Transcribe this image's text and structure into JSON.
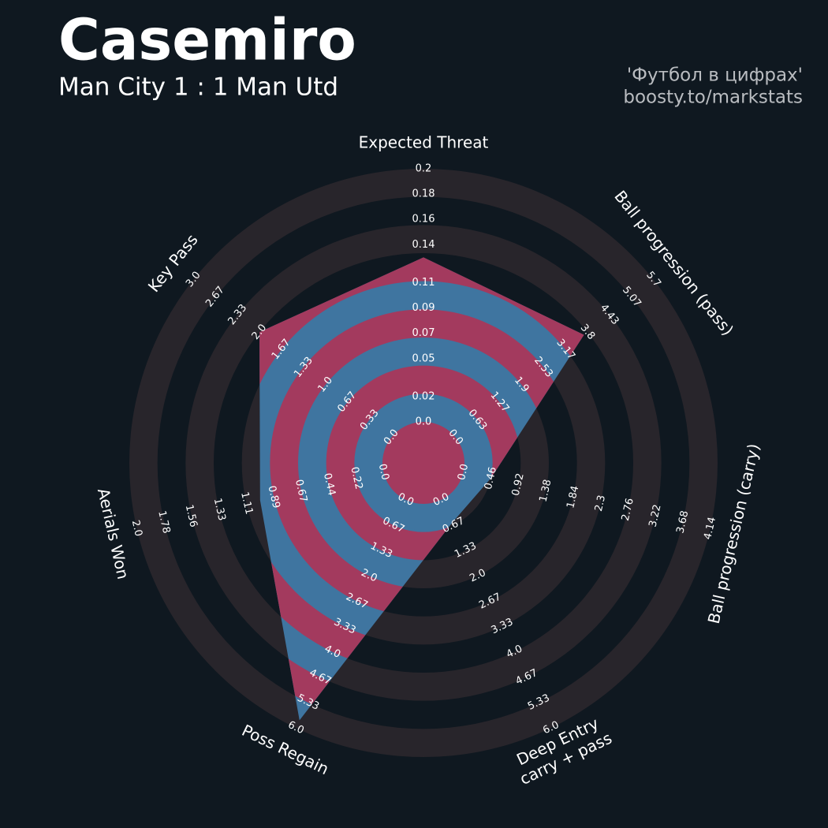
{
  "chart_data": {
    "type": "radar",
    "title": "Casemiro",
    "subtitle": "Man City 1 : 1 Man Utd",
    "credits": [
      "'Футбол в цифрах'",
      "boosty.to/markstats"
    ],
    "categories": [
      "Expected Threat",
      "Ball progression (pass)",
      "Ball progression (carry)",
      "Deep Entry\ncarry + pass",
      "Poss Regain",
      "Aerials Won",
      "Key Pass"
    ],
    "values": [
      0.13,
      3.7,
      0.46,
      0.6,
      5.8,
      1.0,
      2.0
    ],
    "axes": [
      {
        "lim": [
          0,
          0.2
        ],
        "ticks": [
          {
            "value": 0,
            "label": "0.0"
          },
          0.02,
          0.05,
          0.07,
          0.09,
          0.11,
          0.14,
          0.16,
          0.18,
          0.2
        ]
      },
      {
        "lim": [
          0,
          5.7
        ],
        "ticks": [
          {
            "value": 0,
            "label": "0.0"
          },
          0.63,
          1.27,
          1.9,
          2.53,
          3.17,
          3.8,
          4.43,
          5.07,
          5.7
        ]
      },
      {
        "lim": [
          0,
          4.14
        ],
        "ticks": [
          {
            "value": 0,
            "label": "0.0"
          },
          0.46,
          0.92,
          1.38,
          1.84,
          2.3,
          2.76,
          3.22,
          3.68,
          4.14
        ]
      },
      {
        "lim": [
          0,
          6
        ],
        "ticks": [
          {
            "value": 0,
            "label": "0.0"
          },
          0.67,
          1.33,
          {
            "value": 2,
            "label": "2.0"
          },
          2.67,
          3.33,
          {
            "value": 4,
            "label": "4.0"
          },
          4.67,
          5.33,
          {
            "value": 6,
            "label": "6.0"
          }
        ]
      },
      {
        "lim": [
          0,
          6
        ],
        "ticks": [
          {
            "value": 0,
            "label": "0.0"
          },
          0.67,
          1.33,
          {
            "value": 2,
            "label": "2.0"
          },
          2.67,
          3.33,
          {
            "value": 4,
            "label": "4.0"
          },
          4.67,
          5.33,
          {
            "value": 6,
            "label": "6.0"
          }
        ]
      },
      {
        "lim": [
          0,
          2
        ],
        "ticks": [
          {
            "value": 0,
            "label": "0.0"
          },
          0.22,
          0.44,
          0.67,
          0.89,
          1.11,
          1.33,
          1.56,
          1.78,
          {
            "value": 2,
            "label": "2.0"
          }
        ]
      },
      {
        "lim": [
          0,
          3
        ],
        "ticks": [
          {
            "value": 0,
            "label": "0.0"
          },
          0.33,
          0.67,
          {
            "value": 1,
            "label": "1.0"
          },
          1.33,
          1.67,
          {
            "value": 2,
            "label": "2.0"
          },
          2.33,
          2.67,
          {
            "value": 3,
            "label": "3.0"
          }
        ]
      }
    ],
    "fill_colors": [
      "#a33a5e",
      "#3f75a0"
    ],
    "ring_colors": [
      "#28252b",
      "#0f1820"
    ]
  }
}
